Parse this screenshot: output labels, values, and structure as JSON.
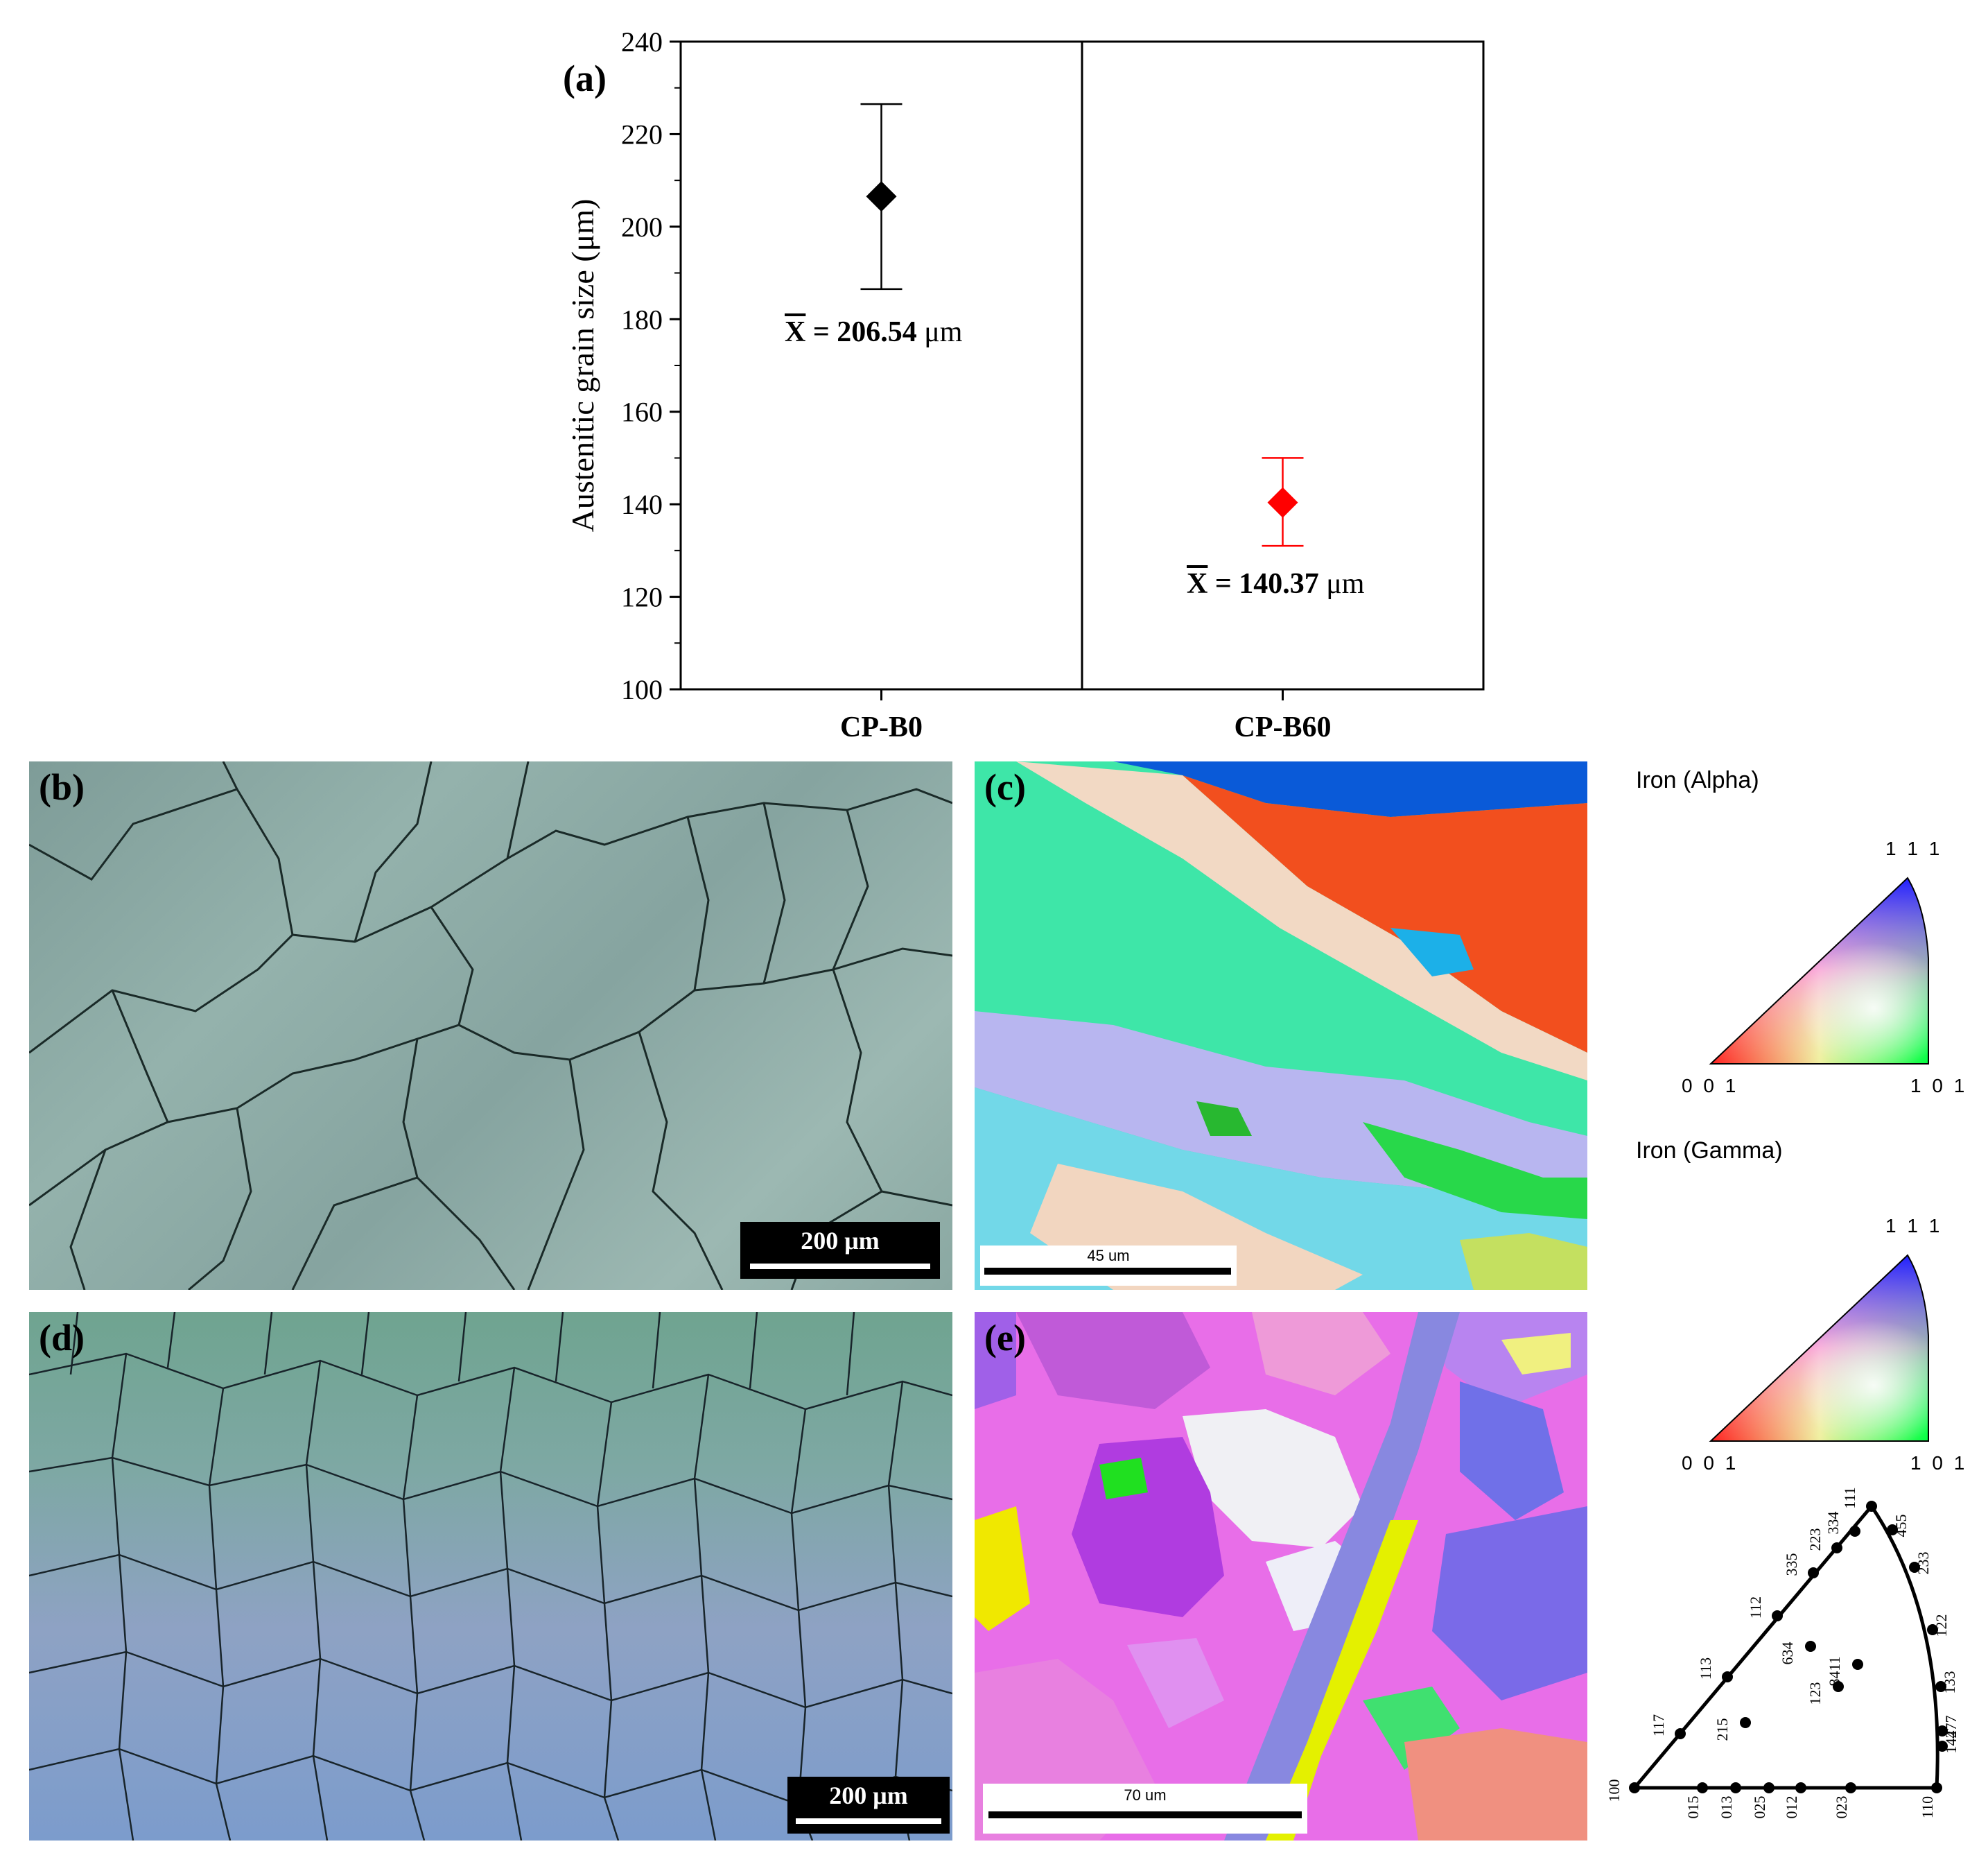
{
  "panels": {
    "a": "(a)",
    "b": "(b)",
    "c": "(c)",
    "d": "(d)",
    "e": "(e)"
  },
  "chart_data": {
    "type": "scatter",
    "categories": [
      "CP-B0",
      "CP-B60"
    ],
    "ylabel": "Austenitic grain size (μm)",
    "ylim": [
      100,
      240
    ],
    "yticks": [
      100,
      120,
      140,
      160,
      180,
      200,
      220,
      240
    ],
    "series": [
      {
        "category": "CP-B0",
        "mean": 206.54,
        "upper": 226.5,
        "lower": 186.5,
        "color": "#000000"
      },
      {
        "category": "CP-B60",
        "mean": 140.37,
        "upper": 150,
        "lower": 131,
        "color": "#ff0000"
      }
    ],
    "annotations": [
      {
        "bar": "X",
        "text": " = 206.54 ",
        "unit": "μm"
      },
      {
        "bar": "X",
        "text": " = 140.37 ",
        "unit": "μm"
      }
    ]
  },
  "scalebars": {
    "b": "200 μm",
    "c": "45 um",
    "d": "200 μm",
    "e": "70 um"
  },
  "legend": {
    "alpha_title": "Iron (Alpha)",
    "gamma_title": "Iron (Gamma)",
    "corner_111": "1 1 1",
    "corner_001": "0 0 1",
    "corner_101": "1 0 1"
  },
  "stereo": {
    "points": [
      {
        "label": "100"
      },
      {
        "label": "015"
      },
      {
        "label": "013"
      },
      {
        "label": "025"
      },
      {
        "label": "012"
      },
      {
        "label": "023"
      },
      {
        "label": "110"
      },
      {
        "label": "117"
      },
      {
        "label": "113"
      },
      {
        "label": "112"
      },
      {
        "label": "335"
      },
      {
        "label": "223"
      },
      {
        "label": "334"
      },
      {
        "label": "111"
      },
      {
        "label": "455"
      },
      {
        "label": "233"
      },
      {
        "label": "122"
      },
      {
        "label": "133"
      },
      {
        "label": "277"
      },
      {
        "label": "144"
      },
      {
        "label": "215"
      },
      {
        "label": "123"
      },
      {
        "label": "634"
      },
      {
        "label": "8411"
      }
    ]
  }
}
